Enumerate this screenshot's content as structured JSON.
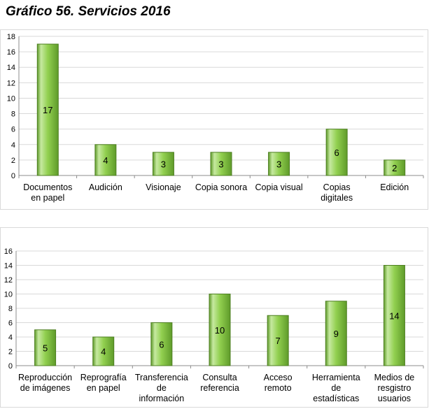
{
  "title": "Gráfico 56.  Servicios 2016",
  "colors": {
    "bar_fill": "#92d050",
    "bar_dark": "#5f9b2a",
    "bar_light": "#c6e9a0",
    "grid": "#d9d9d9",
    "axis": "#8c8c8c"
  },
  "chart_data": [
    {
      "type": "bar",
      "categories": [
        [
          "Documentos",
          "en papel"
        ],
        [
          "Audición"
        ],
        [
          "Visionaje"
        ],
        [
          "Copia sonora"
        ],
        [
          "Copia visual"
        ],
        [
          "Copias",
          "digitales"
        ],
        [
          "Edición"
        ]
      ],
      "values": [
        17,
        4,
        3,
        3,
        3,
        6,
        2
      ],
      "data_labels": [
        "17",
        "4",
        "3",
        "3",
        "3",
        "6",
        "2"
      ],
      "ylim": [
        0,
        18
      ],
      "yticks": [
        "0",
        "2",
        "4",
        "6",
        "8",
        "10",
        "12",
        "14",
        "16",
        "18"
      ],
      "grid": true,
      "legend": "none"
    },
    {
      "type": "bar",
      "categories": [
        [
          "Reproducción",
          "de imágenes"
        ],
        [
          "Reprografía",
          "en papel"
        ],
        [
          "Transferencia",
          "de",
          "información"
        ],
        [
          "Consulta",
          "referencia"
        ],
        [
          "Acceso",
          "remoto"
        ],
        [
          "Herramienta",
          "de",
          "estadísticas"
        ],
        [
          "Medios de",
          "resgistro",
          "usuarios"
        ]
      ],
      "values": [
        5,
        4,
        6,
        10,
        7,
        9,
        14
      ],
      "data_labels": [
        "5",
        "4",
        "6",
        "10",
        "7",
        "9",
        "14"
      ],
      "ylim": [
        0,
        16
      ],
      "yticks": [
        "0",
        "2",
        "4",
        "6",
        "8",
        "10",
        "12",
        "14",
        "16"
      ],
      "grid": true,
      "legend": "none"
    }
  ]
}
